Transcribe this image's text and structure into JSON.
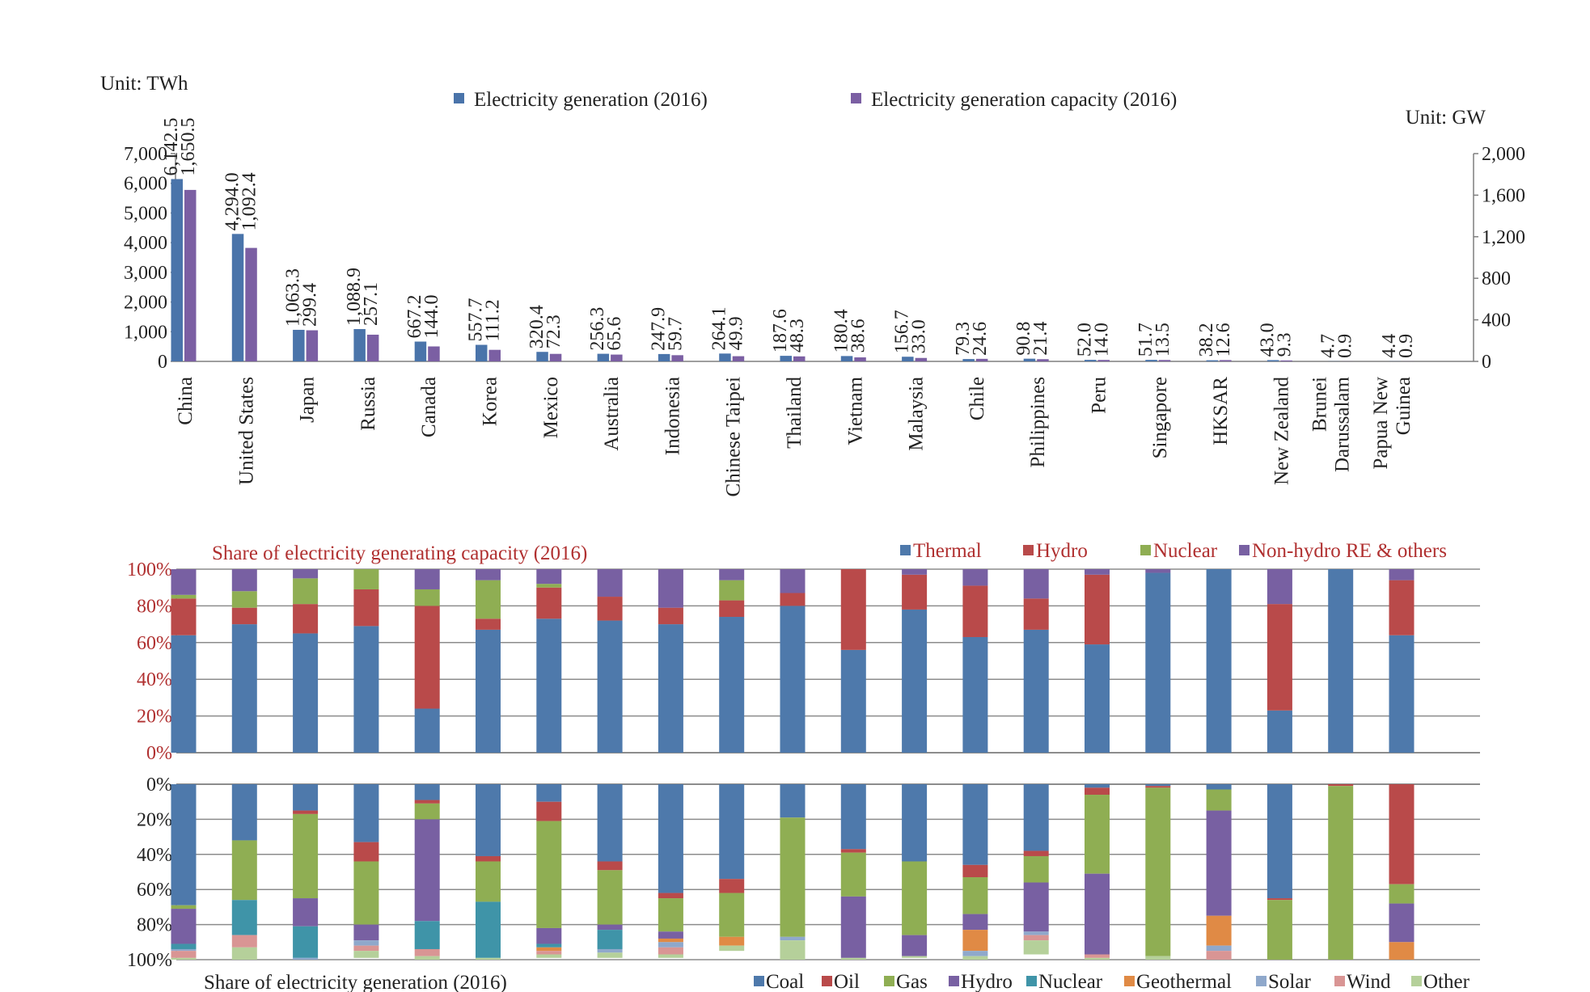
{
  "chart_data": [
    {
      "type": "bar",
      "left_axis_unit": "Unit: TWh",
      "right_axis_unit": "Unit: GW",
      "left_axis_ticks": [
        "0",
        "1,000",
        "2,000",
        "3,000",
        "4,000",
        "5,000",
        "6,000",
        "7,000"
      ],
      "right_axis_ticks": [
        "0",
        "400",
        "800",
        "1,200",
        "1,600",
        "2,000"
      ],
      "ylim_left": [
        0,
        7000
      ],
      "ylim_right": [
        0,
        2000
      ],
      "legend_position": "top",
      "categories": [
        "China",
        "United States",
        "Japan",
        "Russia",
        "Canada",
        "Korea",
        "Mexico",
        "Australia",
        "Indonesia",
        "Chinese Taipei",
        "Thailand",
        "Vietnam",
        "Malaysia",
        "Chile",
        "Philippines",
        "Peru",
        "Singapore",
        "HKSAR",
        "New Zealand",
        "Brunei Darussalam",
        "Papua New Guinea"
      ],
      "category_labels": [
        [
          "China"
        ],
        [
          "United States"
        ],
        [
          "Japan"
        ],
        [
          "Russia"
        ],
        [
          "Canada"
        ],
        [
          "Korea"
        ],
        [
          "Mexico"
        ],
        [
          "Australia"
        ],
        [
          "Indonesia"
        ],
        [
          "Chinese Taipei"
        ],
        [
          "Thailand"
        ],
        [
          "Vietnam"
        ],
        [
          "Malaysia"
        ],
        [
          "Chile"
        ],
        [
          "Philippines"
        ],
        [
          "Peru"
        ],
        [
          "Singapore"
        ],
        [
          "HKSAR"
        ],
        [
          "New Zealand"
        ],
        [
          "Brunei",
          "Darussalam"
        ],
        [
          "Papua New",
          "Guinea"
        ]
      ],
      "series": [
        {
          "name": "Electricity generation (2016)",
          "axis": "left",
          "color": "#4a74aa",
          "values": [
            6142.5,
            4294.0,
            1063.3,
            1088.9,
            667.2,
            557.7,
            320.4,
            256.3,
            247.9,
            264.1,
            187.6,
            180.4,
            156.7,
            79.3,
            90.8,
            52.0,
            51.7,
            38.2,
            43.0,
            4.7,
            4.4
          ],
          "labels": [
            "6,142.5",
            "4,294.0",
            "1,063.3",
            "1,088.9",
            "667.2",
            "557.7",
            "320.4",
            "256.3",
            "247.9",
            "264.1",
            "187.6",
            "180.4",
            "156.7",
            "79.3",
            "90.8",
            "52.0",
            "51.7",
            "38.2",
            "43.0",
            "4.7",
            "4.4"
          ]
        },
        {
          "name": "Electricity generation capacity (2016)",
          "axis": "right",
          "color": "#7b5fa3",
          "values": [
            1650.5,
            1092.4,
            299.4,
            257.1,
            144.0,
            111.2,
            72.3,
            65.6,
            59.7,
            49.9,
            48.3,
            38.6,
            33.0,
            24.6,
            21.4,
            14.0,
            13.5,
            12.6,
            9.3,
            0.9,
            0.9
          ],
          "labels": [
            "1,650.5",
            "1,092.4",
            "299.4",
            "257.1",
            "144.0",
            "111.2",
            "72.3",
            "65.6",
            "59.7",
            "49.9",
            "48.3",
            "38.6",
            "33.0",
            "24.6",
            "21.4",
            "14.0",
            "13.5",
            "12.6",
            "9.3",
            "0.9",
            "0.9"
          ]
        }
      ]
    },
    {
      "type": "bar",
      "stacked": true,
      "percent": true,
      "title": "Share of electricity generating capacity (2016)",
      "tick_labels": [
        "0%",
        "20%",
        "40%",
        "60%",
        "80%",
        "100%"
      ],
      "ylim": [
        0,
        100
      ],
      "legend_position": "top-right",
      "series": [
        {
          "name": "Thermal",
          "color": "#4e79ab",
          "values": [
            64,
            70,
            65,
            69,
            24,
            67,
            73,
            72,
            70,
            74,
            80,
            56,
            78,
            63,
            67,
            59,
            98,
            100,
            23,
            100,
            64
          ]
        },
        {
          "name": "Hydro",
          "color": "#b94a4a",
          "values": [
            20,
            9,
            16,
            20,
            56,
            6,
            17,
            13,
            9,
            9,
            7,
            44,
            19,
            28,
            17,
            38,
            0,
            0,
            58,
            0,
            30
          ]
        },
        {
          "name": "Nuclear",
          "color": "#8fae53",
          "values": [
            2,
            9,
            14,
            11,
            9,
            21,
            2,
            0,
            0,
            11,
            0,
            0,
            0,
            0,
            0,
            0,
            0,
            0,
            0,
            0,
            0
          ]
        },
        {
          "name": "Non-hydro RE & others",
          "color": "#7860a2",
          "values": [
            14,
            12,
            5,
            0,
            11,
            6,
            8,
            15,
            21,
            6,
            13,
            0,
            3,
            9,
            16,
            3,
            2,
            0,
            19,
            0,
            6
          ]
        }
      ]
    },
    {
      "type": "bar",
      "stacked": true,
      "percent": true,
      "inverted": true,
      "title": "Share of electricity generation (2016)",
      "tick_labels": [
        "0%",
        "20%",
        "40%",
        "60%",
        "80%",
        "100%"
      ],
      "ylim": [
        0,
        100
      ],
      "legend_position": "bottom-right",
      "series": [
        {
          "name": "Coal",
          "color": "#4e79ab",
          "values": [
            69,
            32,
            15,
            33,
            9,
            41,
            10,
            44,
            62,
            54,
            19,
            37,
            44,
            46,
            38,
            2,
            1,
            3,
            65,
            0,
            0
          ]
        },
        {
          "name": "Oil",
          "color": "#b94a4a",
          "values": [
            0,
            0,
            2,
            11,
            2,
            3,
            11,
            5,
            3,
            8,
            0,
            2,
            0,
            7,
            3,
            4,
            1,
            0,
            1,
            1,
            57
          ]
        },
        {
          "name": "Gas",
          "color": "#8fae53",
          "values": [
            2,
            34,
            48,
            36,
            9,
            23,
            61,
            31,
            19,
            25,
            68,
            25,
            42,
            21,
            15,
            45,
            96,
            12,
            34,
            99,
            11
          ]
        },
        {
          "name": "Hydro",
          "color": "#7860a2",
          "values": [
            20,
            0,
            16,
            9,
            58,
            0,
            9,
            3,
            4,
            0,
            0,
            35,
            12,
            9,
            28,
            46,
            0,
            60,
            0,
            0,
            22
          ]
        },
        {
          "name": "Nuclear",
          "color": "#3f94a8",
          "values": [
            3,
            20,
            18,
            0,
            16,
            32,
            2,
            11,
            0,
            0,
            0,
            0,
            0,
            0,
            0,
            0,
            0,
            0,
            0,
            0,
            0
          ]
        },
        {
          "name": "Geothermal",
          "color": "#e08a45",
          "values": [
            0,
            0,
            0,
            0,
            0,
            0,
            2,
            0,
            2,
            5,
            0,
            0,
            0,
            12,
            0,
            0,
            0,
            17,
            0,
            0,
            10
          ]
        },
        {
          "name": "Solar",
          "color": "#8fa8cb",
          "values": [
            1,
            0,
            1,
            3,
            0,
            0,
            0,
            2,
            3,
            0,
            2,
            0,
            0,
            3,
            2,
            0,
            0,
            3,
            0,
            0,
            0
          ]
        },
        {
          "name": "Wind",
          "color": "#d99594",
          "values": [
            4,
            7,
            0,
            3,
            4,
            0,
            2,
            0,
            4,
            0,
            0,
            0,
            0,
            0,
            3,
            2,
            0,
            5,
            0,
            0,
            0
          ]
        },
        {
          "name": "Other",
          "color": "#b5d09a",
          "values": [
            1,
            7,
            0,
            4,
            2,
            1,
            2,
            3,
            2,
            3,
            11,
            1,
            1,
            2,
            8,
            1,
            2,
            0,
            0,
            0,
            0
          ]
        }
      ]
    }
  ]
}
